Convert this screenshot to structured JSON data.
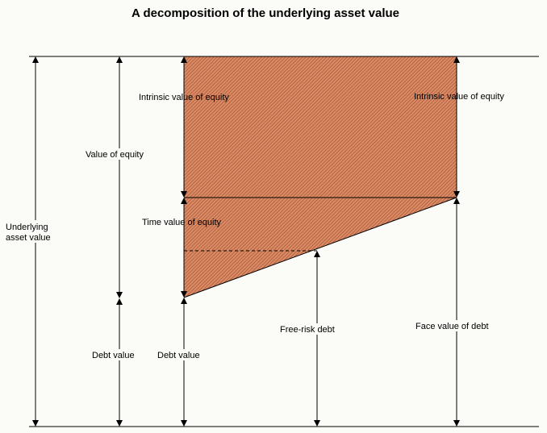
{
  "title": "A decomposition of the underlying asset value",
  "labels": {
    "underlying_line1": "Underlying",
    "underlying_line2": "asset value",
    "value_of_equity": "Value of equity",
    "debt_value_left": "Debt value",
    "intrinsic_left": "Intrinsic value of equity",
    "time_value": "Time value of equity",
    "debt_value_mid": "Debt value",
    "free_risk_debt": "Free-risk debt",
    "intrinsic_right": "Intrinsic value of equity",
    "face_value_debt": "Face value of debt"
  },
  "colors": {
    "shaded_fill": "#d98c66",
    "hatch": "#a0482a",
    "line": "#000000"
  }
}
